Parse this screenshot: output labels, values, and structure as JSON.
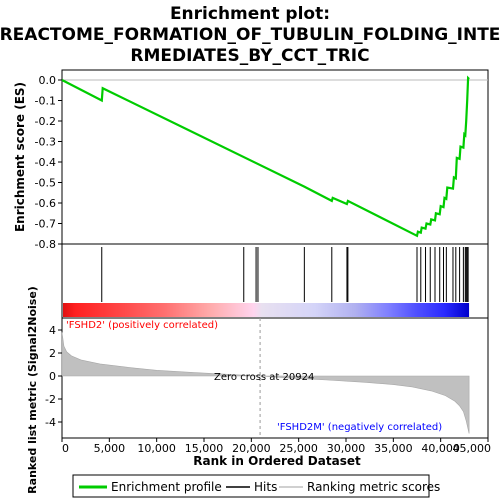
{
  "title_lines": [
    "Enrichment plot:",
    "REACTOME_FORMATION_OF_TUBULIN_FOLDING_INTE",
    "RMEDIATES_BY_CCT_TRIC"
  ],
  "top_ylabel": "Enrichment score (ES)",
  "bottom_ylabel": "Ranked list metric (Signal2Noise)",
  "xlabel": "Rank in Ordered Dataset",
  "pos_label": "'FSHD2' (positively correlated)",
  "neg_label": "'FSHD2M' (negatively correlated)",
  "zero_cross_label": "Zero cross at 20924",
  "legend": {
    "enrichment": "Enrichment profile",
    "hits": "Hits",
    "metric": "Ranking metric scores"
  },
  "colors": {
    "enrichment_line": "#00cc00",
    "hits": "#000000",
    "metric_fill": "#c0c0c0",
    "pos_text": "#ff0000",
    "neg_text": "#0000ff"
  },
  "chart_data": {
    "type": "line",
    "x_range": [
      0,
      45000
    ],
    "x_ticks": [
      "0",
      "5,000",
      "10,000",
      "15,000",
      "20,000",
      "25,000",
      "30,000",
      "35,000",
      "40,000",
      "45,000"
    ],
    "es_ylim": [
      -0.8,
      0.05
    ],
    "es_ticks": [
      "0.0",
      "-0.1",
      "-0.2",
      "-0.3",
      "-0.4",
      "-0.5",
      "-0.6",
      "-0.7",
      "-0.8"
    ],
    "metric_ticks": [
      "4",
      "2",
      "0",
      "-2",
      "-4"
    ],
    "total_rank": 43000,
    "zero_cross": 20924,
    "enrichment_profile": {
      "x": [
        0,
        4200,
        4300,
        25600,
        28500,
        28600,
        30100,
        30200,
        37500,
        37600,
        37900,
        38000,
        38400,
        38500,
        38900,
        39000,
        39400,
        39500,
        39900,
        40000,
        40300,
        40400,
        40600,
        40700,
        41300,
        41400,
        41600,
        41700,
        42000,
        42100,
        42400,
        42500,
        42600,
        42700,
        42800,
        42900,
        43000
      ],
      "y": [
        0.0,
        -0.1,
        -0.04,
        -0.52,
        -0.59,
        -0.575,
        -0.605,
        -0.59,
        -0.76,
        -0.74,
        -0.745,
        -0.72,
        -0.725,
        -0.7,
        -0.705,
        -0.68,
        -0.685,
        -0.65,
        -0.655,
        -0.615,
        -0.62,
        -0.575,
        -0.58,
        -0.525,
        -0.53,
        -0.475,
        -0.48,
        -0.38,
        -0.385,
        -0.325,
        -0.33,
        -0.265,
        -0.27,
        -0.2,
        -0.1,
        0.01,
        0.005
      ]
    },
    "hits": [
      4200,
      19200,
      20500,
      20700,
      25600,
      28500,
      30100,
      30200,
      37500,
      37900,
      38400,
      38900,
      39400,
      39900,
      40300,
      40600,
      41300,
      41600,
      42000,
      42400,
      42600,
      42700,
      42800,
      42900
    ],
    "metric_curve": {
      "x": [
        0,
        200,
        500,
        1000,
        2000,
        4000,
        7000,
        10000,
        14000,
        18000,
        20924,
        24000,
        28000,
        32000,
        35000,
        37000,
        39000,
        40500,
        41500,
        42000,
        42400,
        42700,
        43000
      ],
      "y": [
        3.8,
        2.6,
        2.1,
        1.75,
        1.4,
        1.05,
        0.75,
        0.5,
        0.3,
        0.12,
        0.0,
        -0.18,
        -0.35,
        -0.55,
        -0.75,
        -0.95,
        -1.3,
        -1.7,
        -2.2,
        -2.6,
        -3.1,
        -3.9,
        -5.0
      ]
    }
  }
}
